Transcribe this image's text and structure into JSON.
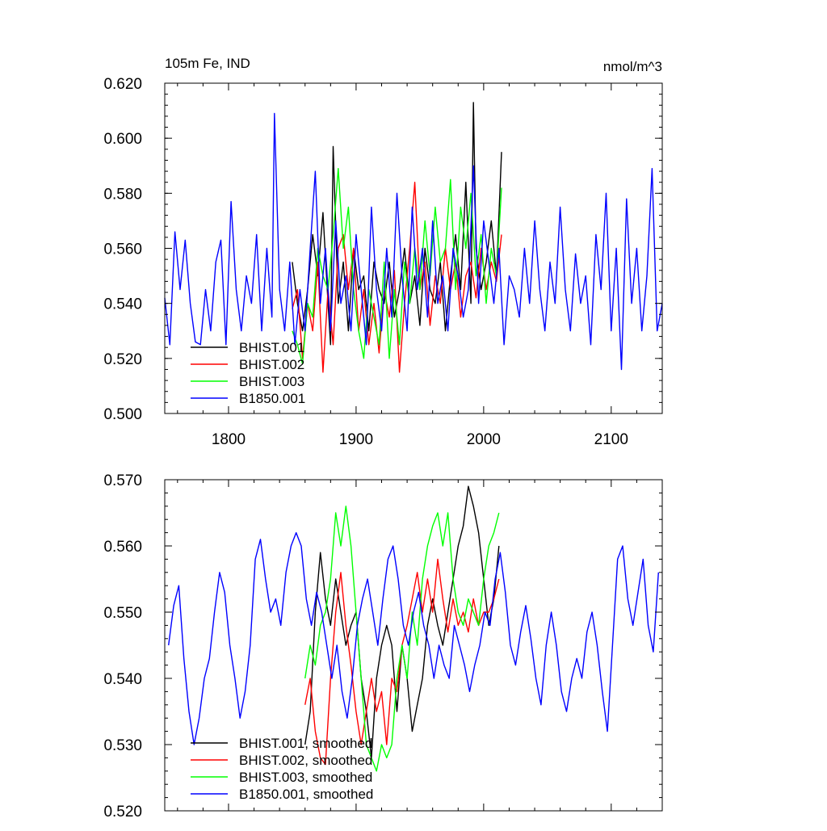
{
  "chart_data": [
    {
      "type": "line",
      "title_left": "105m Fe, IND",
      "title_right": "nmol/m^3",
      "xlim": [
        1750,
        2140
      ],
      "ylim": [
        0.5,
        0.62
      ],
      "yticks": [
        "0.500",
        "0.520",
        "0.540",
        "0.560",
        "0.580",
        "0.600",
        "0.620"
      ],
      "xticks": [
        "1800",
        "1900",
        "2000",
        "2100"
      ],
      "series": [
        {
          "name": "BHIST.001",
          "color": "#000000",
          "x": [
            1850,
            1854,
            1858,
            1862,
            1866,
            1870,
            1874,
            1878,
            1880,
            1882,
            1886,
            1890,
            1894,
            1898,
            1902,
            1906,
            1910,
            1914,
            1918,
            1922,
            1926,
            1930,
            1934,
            1938,
            1942,
            1946,
            1950,
            1954,
            1958,
            1962,
            1966,
            1970,
            1974,
            1978,
            1982,
            1986,
            1990,
            1992,
            1994,
            1998,
            2002,
            2006,
            2010,
            2014
          ],
          "values": [
            0.555,
            0.54,
            0.53,
            0.545,
            0.565,
            0.55,
            0.573,
            0.54,
            0.525,
            0.597,
            0.54,
            0.555,
            0.53,
            0.56,
            0.545,
            0.55,
            0.53,
            0.555,
            0.545,
            0.54,
            0.555,
            0.535,
            0.545,
            0.56,
            0.54,
            0.55,
            0.532,
            0.56,
            0.545,
            0.54,
            0.555,
            0.53,
            0.55,
            0.565,
            0.545,
            0.584,
            0.54,
            0.613,
            0.56,
            0.545,
            0.555,
            0.57,
            0.55,
            0.595
          ]
        },
        {
          "name": "BHIST.002",
          "color": "#ff0000",
          "x": [
            1850,
            1854,
            1858,
            1862,
            1866,
            1870,
            1874,
            1878,
            1882,
            1886,
            1890,
            1894,
            1898,
            1902,
            1906,
            1910,
            1914,
            1918,
            1922,
            1926,
            1930,
            1934,
            1938,
            1942,
            1946,
            1950,
            1954,
            1958,
            1962,
            1966,
            1970,
            1974,
            1978,
            1982,
            1986,
            1990,
            1994,
            1998,
            2002,
            2006,
            2010,
            2014
          ],
          "values": [
            0.538,
            0.545,
            0.52,
            0.54,
            0.53,
            0.555,
            0.515,
            0.545,
            0.525,
            0.56,
            0.565,
            0.545,
            0.56,
            0.53,
            0.545,
            0.525,
            0.54,
            0.522,
            0.545,
            0.535,
            0.552,
            0.515,
            0.54,
            0.56,
            0.584,
            0.545,
            0.555,
            0.532,
            0.55,
            0.54,
            0.56,
            0.545,
            0.555,
            0.535,
            0.55,
            0.555,
            0.542,
            0.56,
            0.545,
            0.555,
            0.548,
            0.565
          ]
        },
        {
          "name": "BHIST.003",
          "color": "#00ff00",
          "x": [
            1850,
            1854,
            1858,
            1862,
            1866,
            1870,
            1874,
            1878,
            1882,
            1886,
            1890,
            1894,
            1898,
            1902,
            1906,
            1910,
            1914,
            1918,
            1922,
            1926,
            1930,
            1934,
            1938,
            1942,
            1946,
            1950,
            1954,
            1958,
            1962,
            1966,
            1970,
            1974,
            1978,
            1982,
            1986,
            1990,
            1994,
            1998,
            2002,
            2006,
            2010,
            2014
          ],
          "values": [
            0.53,
            0.525,
            0.518,
            0.54,
            0.535,
            0.56,
            0.55,
            0.545,
            0.565,
            0.589,
            0.56,
            0.575,
            0.545,
            0.53,
            0.52,
            0.545,
            0.535,
            0.525,
            0.555,
            0.52,
            0.545,
            0.525,
            0.555,
            0.54,
            0.56,
            0.545,
            0.57,
            0.55,
            0.575,
            0.555,
            0.56,
            0.585,
            0.545,
            0.575,
            0.56,
            0.58,
            0.55,
            0.565,
            0.54,
            0.56,
            0.55,
            0.582
          ]
        },
        {
          "name": "B1850.001",
          "color": "#0000ff",
          "x": [
            1750,
            1754,
            1758,
            1762,
            1766,
            1770,
            1774,
            1778,
            1782,
            1786,
            1790,
            1794,
            1798,
            1802,
            1806,
            1810,
            1814,
            1818,
            1822,
            1826,
            1830,
            1834,
            1836,
            1840,
            1844,
            1848,
            1852,
            1856,
            1860,
            1864,
            1868,
            1872,
            1876,
            1880,
            1884,
            1888,
            1892,
            1896,
            1900,
            1904,
            1908,
            1912,
            1916,
            1920,
            1924,
            1928,
            1932,
            1936,
            1940,
            1944,
            1948,
            1952,
            1956,
            1960,
            1964,
            1968,
            1972,
            1976,
            1980,
            1984,
            1988,
            1992,
            1996,
            2000,
            2004,
            2008,
            2012,
            2016,
            2020,
            2024,
            2028,
            2032,
            2036,
            2040,
            2044,
            2048,
            2052,
            2056,
            2060,
            2064,
            2068,
            2072,
            2076,
            2080,
            2084,
            2088,
            2092,
            2096,
            2100,
            2104,
            2108,
            2112,
            2116,
            2120,
            2124,
            2128,
            2132,
            2136,
            2140
          ],
          "values": [
            0.542,
            0.525,
            0.566,
            0.545,
            0.563,
            0.54,
            0.526,
            0.525,
            0.545,
            0.53,
            0.555,
            0.563,
            0.525,
            0.577,
            0.545,
            0.53,
            0.55,
            0.54,
            0.565,
            0.53,
            0.56,
            0.535,
            0.609,
            0.545,
            0.53,
            0.555,
            0.525,
            0.545,
            0.53,
            0.56,
            0.588,
            0.54,
            0.56,
            0.53,
            0.57,
            0.54,
            0.55,
            0.53,
            0.565,
            0.545,
            0.525,
            0.575,
            0.545,
            0.53,
            0.56,
            0.535,
            0.58,
            0.55,
            0.53,
            0.575,
            0.545,
            0.56,
            0.535,
            0.57,
            0.54,
            0.55,
            0.53,
            0.56,
            0.55,
            0.535,
            0.545,
            0.59,
            0.54,
            0.57,
            0.555,
            0.54,
            0.56,
            0.525,
            0.55,
            0.545,
            0.535,
            0.56,
            0.54,
            0.57,
            0.545,
            0.53,
            0.555,
            0.54,
            0.575,
            0.545,
            0.53,
            0.558,
            0.54,
            0.55,
            0.525,
            0.565,
            0.545,
            0.58,
            0.53,
            0.56,
            0.516,
            0.578,
            0.54,
            0.56,
            0.53,
            0.55,
            0.589,
            0.53,
            0.54
          ]
        }
      ],
      "legend_placement": "bottom-left"
    },
    {
      "type": "line",
      "xlim": [
        1750,
        2140
      ],
      "ylim": [
        0.52,
        0.57
      ],
      "yticks": [
        "0.520",
        "0.530",
        "0.540",
        "0.550",
        "0.560",
        "0.570"
      ],
      "series": [
        {
          "name": "BHIST.001, smoothed",
          "color": "#000000",
          "x": [
            1860,
            1864,
            1868,
            1872,
            1876,
            1880,
            1884,
            1888,
            1892,
            1896,
            1900,
            1904,
            1908,
            1912,
            1916,
            1920,
            1924,
            1928,
            1932,
            1936,
            1940,
            1944,
            1948,
            1952,
            1956,
            1960,
            1964,
            1968,
            1972,
            1976,
            1980,
            1984,
            1988,
            1992,
            1996,
            2000,
            2004,
            2008,
            2012
          ],
          "values": [
            0.53,
            0.535,
            0.55,
            0.559,
            0.552,
            0.548,
            0.555,
            0.55,
            0.545,
            0.548,
            0.55,
            0.54,
            0.535,
            0.528,
            0.54,
            0.545,
            0.548,
            0.545,
            0.535,
            0.545,
            0.54,
            0.532,
            0.536,
            0.54,
            0.548,
            0.552,
            0.548,
            0.545,
            0.55,
            0.555,
            0.56,
            0.563,
            0.569,
            0.566,
            0.562,
            0.555,
            0.548,
            0.552,
            0.56
          ]
        },
        {
          "name": "BHIST.002, smoothed",
          "color": "#ff0000",
          "x": [
            1860,
            1864,
            1868,
            1872,
            1876,
            1880,
            1884,
            1888,
            1892,
            1896,
            1900,
            1904,
            1908,
            1912,
            1916,
            1920,
            1924,
            1928,
            1932,
            1936,
            1940,
            1944,
            1948,
            1952,
            1956,
            1960,
            1964,
            1968,
            1972,
            1976,
            1980,
            1984,
            1988,
            1992,
            1996,
            2000,
            2004,
            2008,
            2012
          ],
          "values": [
            0.536,
            0.54,
            0.532,
            0.528,
            0.527,
            0.54,
            0.55,
            0.556,
            0.548,
            0.542,
            0.535,
            0.53,
            0.535,
            0.54,
            0.535,
            0.538,
            0.53,
            0.54,
            0.538,
            0.545,
            0.548,
            0.552,
            0.556,
            0.55,
            0.555,
            0.55,
            0.558,
            0.552,
            0.547,
            0.552,
            0.548,
            0.55,
            0.547,
            0.552,
            0.548,
            0.55,
            0.55,
            0.552,
            0.555
          ]
        },
        {
          "name": "BHIST.003, smoothed",
          "color": "#00ff00",
          "x": [
            1860,
            1864,
            1868,
            1872,
            1876,
            1880,
            1884,
            1888,
            1892,
            1896,
            1900,
            1904,
            1908,
            1912,
            1916,
            1920,
            1924,
            1928,
            1932,
            1936,
            1940,
            1944,
            1948,
            1952,
            1956,
            1960,
            1964,
            1968,
            1972,
            1976,
            1980,
            1984,
            1988,
            1992,
            1996,
            2000,
            2004,
            2008,
            2012
          ],
          "values": [
            0.54,
            0.545,
            0.542,
            0.548,
            0.55,
            0.555,
            0.565,
            0.56,
            0.566,
            0.56,
            0.55,
            0.54,
            0.53,
            0.528,
            0.526,
            0.53,
            0.528,
            0.53,
            0.54,
            0.545,
            0.54,
            0.55,
            0.545,
            0.555,
            0.56,
            0.563,
            0.565,
            0.56,
            0.565,
            0.555,
            0.55,
            0.548,
            0.552,
            0.55,
            0.548,
            0.555,
            0.56,
            0.562,
            0.565
          ]
        },
        {
          "name": "B1850.001, smoothed",
          "color": "#0000ff",
          "x": [
            1753,
            1757,
            1761,
            1765,
            1769,
            1773,
            1777,
            1781,
            1785,
            1789,
            1793,
            1797,
            1801,
            1805,
            1809,
            1813,
            1817,
            1821,
            1825,
            1829,
            1833,
            1837,
            1841,
            1845,
            1849,
            1853,
            1857,
            1861,
            1865,
            1869,
            1873,
            1877,
            1881,
            1885,
            1889,
            1893,
            1897,
            1901,
            1905,
            1909,
            1913,
            1917,
            1921,
            1925,
            1929,
            1933,
            1937,
            1941,
            1945,
            1949,
            1953,
            1957,
            1961,
            1965,
            1969,
            1973,
            1977,
            1981,
            1985,
            1989,
            1993,
            1997,
            2001,
            2005,
            2009,
            2013,
            2017,
            2021,
            2025,
            2029,
            2033,
            2037,
            2041,
            2045,
            2049,
            2053,
            2057,
            2061,
            2065,
            2069,
            2073,
            2077,
            2081,
            2085,
            2089,
            2093,
            2097,
            2101,
            2105,
            2109,
            2113,
            2117,
            2121,
            2125,
            2129,
            2133,
            2137
          ],
          "values": [
            0.545,
            0.551,
            0.554,
            0.543,
            0.535,
            0.53,
            0.534,
            0.54,
            0.543,
            0.55,
            0.556,
            0.553,
            0.545,
            0.54,
            0.534,
            0.538,
            0.545,
            0.558,
            0.561,
            0.555,
            0.55,
            0.552,
            0.548,
            0.556,
            0.56,
            0.562,
            0.56,
            0.552,
            0.548,
            0.553,
            0.55,
            0.545,
            0.54,
            0.545,
            0.538,
            0.534,
            0.54,
            0.548,
            0.552,
            0.555,
            0.55,
            0.545,
            0.552,
            0.558,
            0.56,
            0.555,
            0.548,
            0.545,
            0.55,
            0.553,
            0.548,
            0.545,
            0.54,
            0.545,
            0.542,
            0.54,
            0.548,
            0.545,
            0.542,
            0.538,
            0.542,
            0.545,
            0.55,
            0.548,
            0.555,
            0.559,
            0.553,
            0.545,
            0.542,
            0.547,
            0.551,
            0.546,
            0.54,
            0.536,
            0.545,
            0.55,
            0.545,
            0.538,
            0.535,
            0.54,
            0.543,
            0.54,
            0.547,
            0.55,
            0.545,
            0.538,
            0.532,
            0.545,
            0.558,
            0.56,
            0.552,
            0.548,
            0.553,
            0.558,
            0.548,
            0.544,
            0.556
          ]
        }
      ],
      "legend_placement": "bottom-left"
    }
  ]
}
